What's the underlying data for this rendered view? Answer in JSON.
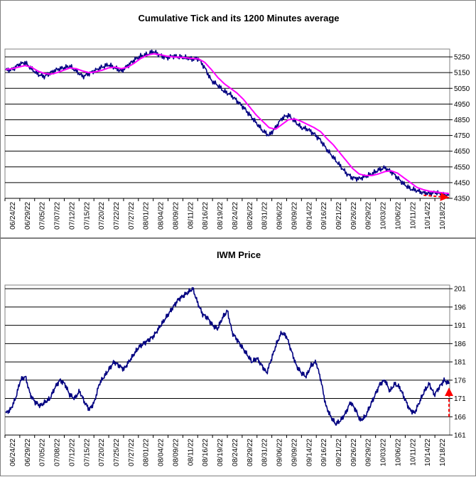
{
  "chart_data": [
    {
      "type": "line",
      "title": "Cumulative Tick and its 1200 Minutes average",
      "ylim": [
        4350,
        5300
      ],
      "yticks": [
        4350,
        4450,
        4550,
        4650,
        4750,
        4850,
        4950,
        5050,
        5150,
        5250
      ],
      "xticks": [
        "06/24/22",
        "06/29/22",
        "07/05/22",
        "07/07/22",
        "07/12/22",
        "07/15/22",
        "07/20/22",
        "07/22/22",
        "07/27/22",
        "08/01/22",
        "08/04/22",
        "08/09/22",
        "08/11/22",
        "08/16/22",
        "08/19/22",
        "08/24/22",
        "08/26/22",
        "08/31/22",
        "09/06/22",
        "09/09/22",
        "09/14/22",
        "09/16/22",
        "09/21/22",
        "09/26/22",
        "09/29/22",
        "10/03/22",
        "10/06/22",
        "10/11/22",
        "10/14/22",
        "10/18/22"
      ],
      "series": [
        {
          "color": "#000080",
          "values": [
            5165,
            5170,
            5200,
            5215,
            5175,
            5140,
            5125,
            5150,
            5170,
            5180,
            5190,
            5160,
            5125,
            5145,
            5165,
            5185,
            5200,
            5180,
            5160,
            5195,
            5230,
            5255,
            5265,
            5285,
            5260,
            5245,
            5255,
            5250,
            5245,
            5235,
            5240,
            5180,
            5100,
            5070,
            5030,
            5010,
            4970,
            4930,
            4880,
            4830,
            4780,
            4750,
            4800,
            4860,
            4880,
            4840,
            4800,
            4790,
            4760,
            4720,
            4660,
            4610,
            4560,
            4510,
            4480,
            4475,
            4490,
            4505,
            4530,
            4545,
            4520,
            4480,
            4440,
            4410,
            4400,
            4385,
            4380,
            4390,
            4370,
            4375
          ]
        },
        {
          "color": "#ff00ff",
          "values": [
            5170,
            5175,
            5185,
            5195,
            5185,
            5160,
            5145,
            5140,
            5150,
            5165,
            5180,
            5175,
            5160,
            5150,
            5155,
            5165,
            5180,
            5185,
            5175,
            5185,
            5210,
            5240,
            5260,
            5270,
            5265,
            5255,
            5250,
            5248,
            5245,
            5240,
            5238,
            5215,
            5170,
            5120,
            5080,
            5050,
            5020,
            4980,
            4930,
            4880,
            4840,
            4800,
            4790,
            4820,
            4850,
            4855,
            4840,
            4820,
            4800,
            4775,
            4730,
            4690,
            4640,
            4590,
            4540,
            4505,
            4495,
            4495,
            4505,
            4520,
            4525,
            4510,
            4480,
            4450,
            4420,
            4405,
            4395,
            4390,
            4385,
            4380
          ]
        }
      ],
      "annotation_arrow": {
        "from": [
          66,
          4370
        ],
        "to": [
          70,
          4355
        ],
        "color": "#ff0000",
        "style": "dashed"
      }
    },
    {
      "type": "line",
      "title": "IWM Price",
      "ylim": [
        161,
        202
      ],
      "yticks": [
        161,
        166,
        171,
        176,
        181,
        186,
        191,
        196,
        201
      ],
      "xticks": [
        "06/24/22",
        "06/29/22",
        "07/05/22",
        "07/08/22",
        "07/12/22",
        "07/15/22",
        "07/20/22",
        "07/25/22",
        "07/27/22",
        "08/01/22",
        "08/04/22",
        "08/09/22",
        "08/11/22",
        "08/16/22",
        "08/19/22",
        "08/24/22",
        "08/29/22",
        "08/31/22",
        "09/06/22",
        "09/09/22",
        "09/14/22",
        "09/16/22",
        "09/21/22",
        "09/26/22",
        "09/29/22",
        "10/03/22",
        "10/06/22",
        "10/11/22",
        "10/14/22",
        "10/18/22"
      ],
      "series": [
        {
          "color": "#000080",
          "values": [
            167,
            168,
            171,
            176,
            177,
            172,
            170,
            169,
            170,
            171,
            174,
            176,
            175,
            172,
            171,
            173,
            170,
            168,
            170,
            175,
            177,
            179,
            181,
            180,
            179,
            181,
            183,
            185,
            186,
            187,
            188,
            190,
            192,
            194,
            196,
            198,
            199,
            200,
            201,
            197,
            194,
            193,
            191,
            190,
            193,
            195,
            189,
            187,
            185,
            183,
            181,
            182,
            180,
            178,
            182,
            186,
            189,
            188,
            184,
            180,
            178,
            177,
            180,
            181,
            176,
            169,
            166,
            164,
            165,
            167,
            170,
            168,
            165,
            166,
            169,
            172,
            175,
            176,
            173,
            175,
            174,
            171,
            168,
            167,
            170,
            173,
            175,
            172,
            174,
            176,
            175
          ]
        }
      ],
      "annotation_arrow": {
        "from": [
          84,
          166
        ],
        "to": [
          90,
          174
        ],
        "color": "#ff0000",
        "style": "dashed"
      }
    }
  ]
}
